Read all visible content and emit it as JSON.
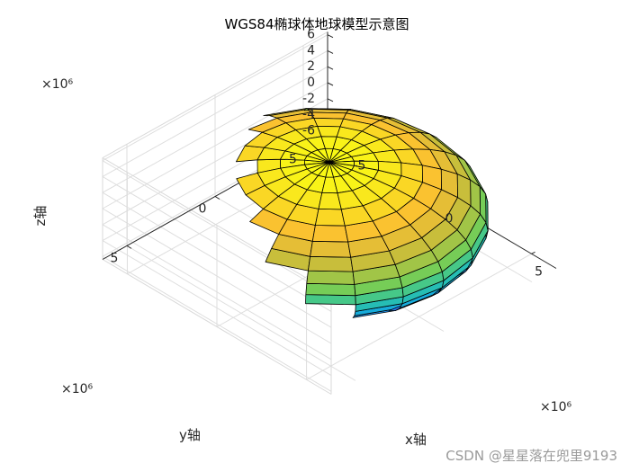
{
  "chart_data": {
    "type": "surface",
    "title": "WGS84椭球体地球模型示意图",
    "xlabel": "x轴",
    "ylabel": "y轴",
    "zlabel": "z轴",
    "xlim": [
      -6378137,
      6378137
    ],
    "ylim": [
      -6378137,
      6378137
    ],
    "zlim": [
      -6356752,
      6356752
    ],
    "x_ticks": [
      "-5",
      "0",
      "5"
    ],
    "y_ticks": [
      "-5",
      "0",
      "5"
    ],
    "z_ticks": [
      "-6",
      "-4",
      "-2",
      "0",
      "2",
      "4",
      "6"
    ],
    "x_exponent": "×10⁶",
    "y_exponent": "×10⁶",
    "z_exponent": "×10⁶",
    "ellipsoid": {
      "semi_major_axis_a": 6378137,
      "semi_minor_axis_b": 6356752.314,
      "mesh_divisions": 20
    },
    "colormap": "parula",
    "grid": true,
    "view": "3d"
  },
  "watermark": "CSDN @星星落在兜里9193"
}
